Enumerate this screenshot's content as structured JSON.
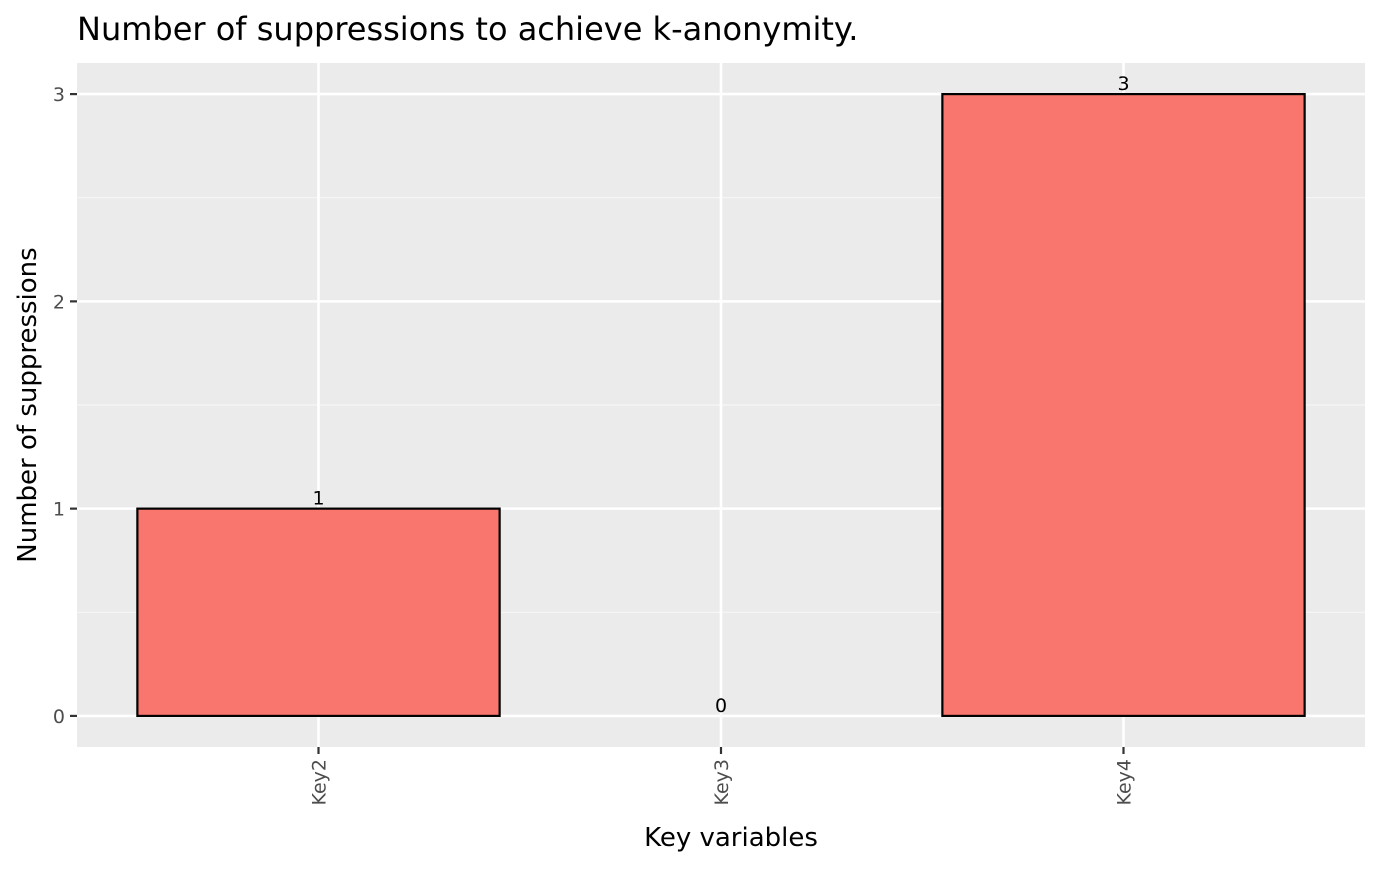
{
  "chart_data": {
    "type": "bar",
    "title": "Number of suppressions to achieve k-anonymity.",
    "xlabel": "Key variables",
    "ylabel": "Number of suppressions",
    "categories": [
      "Key2",
      "Key3",
      "Key4"
    ],
    "values": [
      1,
      0,
      3
    ],
    "data_labels": [
      "1",
      "0",
      "3"
    ],
    "ylim": [
      -0.15,
      3.15
    ],
    "yticks": [
      0,
      1,
      2,
      3
    ],
    "ytick_labels": [
      "0",
      "1",
      "2",
      "3"
    ],
    "grid": true,
    "legend": "none",
    "x_tick_label_rotation": "vertical",
    "colors": {
      "bar_fill": "#F8766D",
      "bar_outline": "#000000",
      "panel_background": "#EBEBEB",
      "grid_major": "#FFFFFF",
      "grid_minor": "#F5F5F5",
      "tick_label": "#4D4D4D",
      "axis_ticks": "#333333",
      "text": "#000000"
    }
  }
}
